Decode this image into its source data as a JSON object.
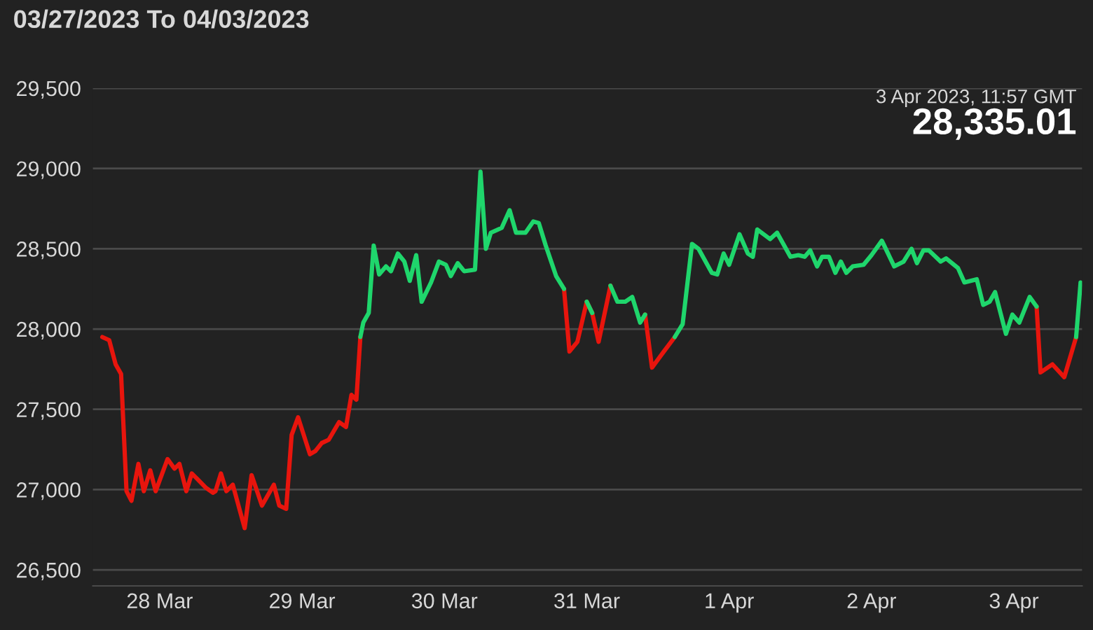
{
  "chart_data": {
    "type": "line",
    "title": "03/27/2023 To 04/03/2023",
    "annotations": [
      "3 Apr 2023, 11:57 GMT",
      "28,335.01"
    ],
    "x": [
      "2023-03-27T14:20",
      "2023-03-27T15:30",
      "2023-03-27T16:35",
      "2023-03-27T17:30",
      "2023-03-27T18:25",
      "2023-03-27T19:15",
      "2023-03-27T20:25",
      "2023-03-27T21:20",
      "2023-03-27T22:25",
      "2023-03-27T23:20",
      "2023-03-28T01:20",
      "2023-03-28T02:30",
      "2023-03-28T03:20",
      "2023-03-28T04:30",
      "2023-03-28T05:25",
      "2023-03-28T06:15",
      "2023-03-28T07:50",
      "2023-03-28T09:00",
      "2023-03-28T09:25",
      "2023-03-28T10:20",
      "2023-03-28T11:15",
      "2023-03-28T12:20",
      "2023-03-28T14:20",
      "2023-03-28T15:30",
      "2023-03-28T17:15",
      "2023-03-28T19:15",
      "2023-03-28T20:10",
      "2023-03-28T21:20",
      "2023-03-28T22:15",
      "2023-03-28T23:20",
      "2023-03-29T01:20",
      "2023-03-29T02:15",
      "2023-03-29T03:20",
      "2023-03-29T04:30",
      "2023-03-29T06:15",
      "2023-03-29T07:25",
      "2023-03-29T08:20",
      "2023-03-29T09:10",
      "2023-03-29T09:50",
      "2023-03-29T10:20",
      "2023-03-29T11:15",
      "2023-03-29T12:05",
      "2023-03-29T13:00",
      "2023-03-29T14:10",
      "2023-03-29T15:00",
      "2023-03-29T16:10",
      "2023-03-29T17:15",
      "2023-03-29T18:10",
      "2023-03-29T19:15",
      "2023-03-29T20:10",
      "2023-03-29T21:45",
      "2023-03-29T23:05",
      "2023-03-30T00:15",
      "2023-03-30T01:05",
      "2023-03-30T02:15",
      "2023-03-30T03:20",
      "2023-03-30T05:10",
      "2023-03-30T06:05",
      "2023-03-30T07:00",
      "2023-03-30T07:50",
      "2023-03-30T09:40",
      "2023-03-30T11:00",
      "2023-03-30T12:05",
      "2023-03-30T13:40",
      "2023-03-30T15:00",
      "2023-03-30T15:55",
      "2023-03-30T17:05",
      "2023-03-30T18:50",
      "2023-03-30T20:10",
      "2023-03-30T21:05",
      "2023-03-30T22:25",
      "2023-03-31T00:00",
      "2023-03-31T00:55",
      "2023-03-31T02:00",
      "2023-03-31T04:00",
      "2023-03-31T05:10",
      "2023-03-31T06:30",
      "2023-03-31T07:40",
      "2023-03-31T09:00",
      "2023-03-31T09:50",
      "2023-03-31T11:00",
      "2023-03-31T13:00",
      "2023-03-31T14:50",
      "2023-03-31T16:10",
      "2023-03-31T17:45",
      "2023-03-31T18:50",
      "2023-03-31T21:05",
      "2023-03-31T22:00",
      "2023-03-31T23:05",
      "2023-04-01T00:00",
      "2023-04-01T01:45",
      "2023-04-01T03:10",
      "2023-04-01T04:00",
      "2023-04-01T04:45",
      "2023-04-01T06:55",
      "2023-04-01T08:05",
      "2023-04-01T10:20",
      "2023-04-01T11:40",
      "2023-04-01T12:45",
      "2023-04-01T13:40",
      "2023-04-01T14:50",
      "2023-04-01T15:40",
      "2023-04-01T16:50",
      "2023-04-01T17:55",
      "2023-04-01T18:50",
      "2023-04-01T19:45",
      "2023-04-01T20:50",
      "2023-04-01T22:40",
      "2023-04-02T00:00",
      "2023-04-02T01:45",
      "2023-04-02T03:50",
      "2023-04-02T05:25",
      "2023-04-02T06:45",
      "2023-04-02T07:40",
      "2023-04-02T08:45",
      "2023-04-02T09:40",
      "2023-04-02T11:40",
      "2023-04-02T12:35",
      "2023-04-02T14:35",
      "2023-04-02T15:40",
      "2023-04-02T17:45",
      "2023-04-02T18:50",
      "2023-04-02T19:55",
      "2023-04-02T20:50",
      "2023-04-02T22:40",
      "2023-04-02T23:45",
      "2023-04-03T00:55",
      "2023-04-03T02:40",
      "2023-04-03T03:50",
      "2023-04-03T04:30",
      "2023-04-03T06:30",
      "2023-04-03T08:30",
      "2023-04-03T10:30",
      "2023-04-03T11:15"
    ],
    "series": [
      {
        "color": "#e8150d",
        "values": [
          27950,
          27930,
          27780,
          27720,
          26990,
          26930,
          27160,
          26990,
          27120,
          26990,
          27190,
          27130,
          27160,
          26990,
          27100,
          27070,
          27010,
          26980,
          26990,
          27100,
          26990,
          27030,
          26760,
          27090,
          26900,
          27030,
          26900,
          26880,
          27340,
          27450,
          27220,
          27240,
          27290,
          27310,
          27420,
          27390,
          27590,
          27560,
          27950,
          null,
          null,
          null,
          null,
          null,
          null,
          null,
          null,
          null,
          null,
          null,
          null,
          null,
          null,
          null,
          null,
          null,
          null,
          null,
          null,
          null,
          null,
          null,
          null,
          null,
          null,
          null,
          null,
          null,
          28250,
          27860,
          27920,
          28170,
          28100,
          27920,
          28270,
          null,
          null,
          null,
          null,
          28090,
          27760,
          27860,
          27950,
          null,
          null,
          null,
          null,
          null,
          null,
          null,
          null,
          null,
          null,
          null,
          null,
          null,
          null,
          null,
          null,
          null,
          null,
          null,
          null,
          null,
          null,
          null,
          null,
          null,
          null,
          null,
          null,
          null,
          null,
          null,
          null,
          null,
          null,
          null,
          null,
          null,
          null,
          null,
          null,
          null,
          null,
          null,
          null,
          null,
          28140,
          27730,
          27780,
          27700,
          27950,
          null
        ]
      },
      {
        "color": "#1fd66c",
        "values": [
          null,
          null,
          null,
          null,
          null,
          null,
          null,
          null,
          null,
          null,
          null,
          null,
          null,
          null,
          null,
          null,
          null,
          null,
          null,
          null,
          null,
          null,
          null,
          null,
          null,
          null,
          null,
          null,
          null,
          null,
          null,
          null,
          null,
          null,
          null,
          null,
          null,
          null,
          27950,
          28040,
          28100,
          28520,
          28340,
          28390,
          28360,
          28470,
          28420,
          28300,
          28460,
          28170,
          28290,
          28420,
          28400,
          28330,
          28410,
          28360,
          28370,
          28980,
          28500,
          28600,
          28630,
          28740,
          28600,
          28600,
          28670,
          28660,
          28520,
          28330,
          28250,
          null,
          null,
          28170,
          28100,
          null,
          28270,
          28170,
          28170,
          28200,
          28040,
          28090,
          null,
          null,
          27950,
          28030,
          28530,
          28500,
          28350,
          28340,
          28470,
          28400,
          28590,
          28470,
          28450,
          28620,
          28560,
          28600,
          28450,
          28460,
          28450,
          28490,
          28390,
          28450,
          28450,
          28350,
          28420,
          28350,
          28390,
          28400,
          28460,
          28550,
          28390,
          28420,
          28500,
          28410,
          28490,
          28490,
          28420,
          28440,
          28380,
          28290,
          28310,
          28150,
          28170,
          28230,
          27970,
          28090,
          28040,
          28200,
          28140,
          null,
          null,
          null,
          27950,
          28290
        ]
      }
    ],
    "xlim": [
      "2023-03-27T12:45",
      "2023-04-03T11:30"
    ],
    "xticks": [
      {
        "value": "2023-03-28",
        "label": "28 Mar"
      },
      {
        "value": "2023-03-29",
        "label": "29 Mar"
      },
      {
        "value": "2023-03-30",
        "label": "30 Mar"
      },
      {
        "value": "2023-03-31",
        "label": "31 Mar"
      },
      {
        "value": "2023-04-01",
        "label": "1 Apr"
      },
      {
        "value": "2023-04-02",
        "label": "2 Apr"
      },
      {
        "value": "2023-04-03",
        "label": "3 Apr"
      }
    ],
    "ylim": [
      26400,
      29500
    ],
    "yticks": [
      {
        "value": 26500,
        "label": "26,500"
      },
      {
        "value": 27000,
        "label": "27,000"
      },
      {
        "value": 27500,
        "label": "27,500"
      },
      {
        "value": 28000,
        "label": "28,000"
      },
      {
        "value": 28500,
        "label": "28,500"
      },
      {
        "value": 29000,
        "label": "29,000"
      },
      {
        "value": 29500,
        "label": "29,500"
      }
    ],
    "grid": "y"
  }
}
